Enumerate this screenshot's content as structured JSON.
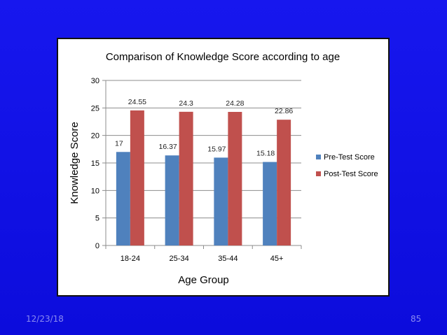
{
  "slide": {
    "date": "12/23/18",
    "page_number": "85"
  },
  "chart_data": {
    "type": "bar",
    "title": "Comparison of Knowledge Score according to age",
    "xlabel": "Age Group",
    "ylabel": "Knowledge Score",
    "categories": [
      "18-24",
      "25-34",
      "35-44",
      "45+"
    ],
    "ylim": [
      0,
      30
    ],
    "yticks": [
      0,
      5,
      10,
      15,
      20,
      25,
      30
    ],
    "grid": true,
    "legend_position": "right",
    "series": [
      {
        "name": "Pre-Test Score",
        "color": "#4f81bd",
        "values": [
          17,
          16.37,
          15.97,
          15.18
        ],
        "labels": [
          "17",
          "16.37",
          "15.97",
          "15.18"
        ]
      },
      {
        "name": "Post-Test Score",
        "color": "#c0504d",
        "values": [
          24.55,
          24.3,
          24.28,
          22.86
        ],
        "labels": [
          "24.55",
          "24.3",
          "24.28",
          "22.86"
        ]
      }
    ]
  },
  "colors": {
    "slide_background": "#1010e6",
    "gridline": "#8c8c8c",
    "axis": "#8c8c8c"
  }
}
